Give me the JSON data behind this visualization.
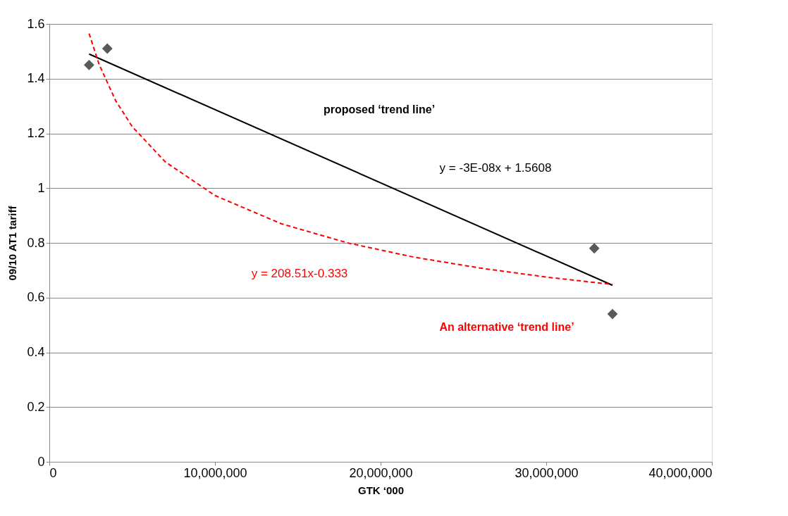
{
  "chart_data": {
    "type": "scatter",
    "xlabel": "GTK ‘000",
    "ylabel": "09/10 AT1 tariff",
    "xlim": [
      0,
      40000000
    ],
    "xticks": [
      0,
      {
        "value": 10000000,
        "label": "10,000,000"
      },
      {
        "value": 20000000,
        "label": "20,000,000"
      },
      {
        "value": 30000000,
        "label": "30,000,000"
      },
      {
        "value": 40000000,
        "label": "40,000,000"
      }
    ],
    "ylim": [
      0,
      1.6
    ],
    "yticks": [
      0,
      0.2,
      0.4,
      0.6,
      0.8,
      1,
      1.2,
      1.4,
      1.6
    ],
    "grid": "y",
    "marker": "diamond",
    "series": [
      {
        "color": "#595959",
        "x": [
          2400000,
          3500000,
          32900000,
          34000000
        ],
        "values": [
          1.45,
          1.51,
          0.78,
          0.54
        ]
      },
      {
        "type": "line",
        "color": "#000000",
        "marker": "none",
        "line_style": "solid",
        "x": [
          2400000,
          34000000
        ],
        "values": [
          1.49,
          0.645
        ]
      },
      {
        "type": "line",
        "color": "#ff0000",
        "marker": "none",
        "line_style": "dashed",
        "x": [
          2400000,
          3000000,
          4000000,
          5000000,
          7000000,
          10000000,
          14000000,
          18000000,
          22000000,
          26000000,
          30000000,
          34000000
        ],
        "values": [
          1.565,
          1.453,
          1.32,
          1.225,
          1.096,
          0.973,
          0.87,
          0.8,
          0.748,
          0.708,
          0.675,
          0.648
        ]
      }
    ],
    "annotations": [
      "proposed ‘trend line’",
      "y = -3E-08x + 1.5608",
      "y = 208.51x-0.333",
      "An alternative ‘trend line’"
    ]
  }
}
